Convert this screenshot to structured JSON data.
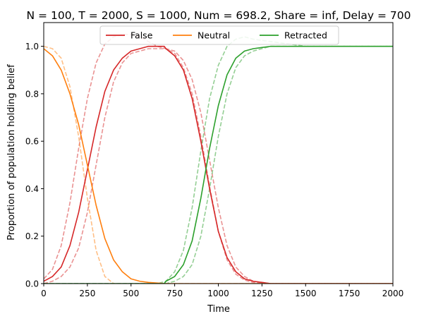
{
  "chart_data": {
    "type": "line",
    "title": "N = 100, T = 2000, S = 1000, Num = 698.2, Share = inf, Delay = 700",
    "xlabel": "Time",
    "ylabel": "Proportion of population holding belief",
    "xlim": [
      0,
      2000
    ],
    "ylim": [
      0,
      1.1
    ],
    "xticks": [
      "0",
      "250",
      "500",
      "750",
      "1000",
      "1250",
      "1500",
      "1750",
      "2000"
    ],
    "yticks": [
      "0.0",
      "0.2",
      "0.4",
      "0.6",
      "0.8",
      "1.0"
    ],
    "grid": false,
    "legend_placement": "upper center",
    "legend": [
      "False",
      "Neutral",
      "Retracted"
    ],
    "series": [
      {
        "name": "False",
        "color": "#d62728",
        "style": "solid",
        "x": [
          0,
          50,
          100,
          150,
          200,
          250,
          300,
          350,
          400,
          450,
          500,
          550,
          600,
          650,
          690,
          700,
          750,
          800,
          850,
          900,
          950,
          1000,
          1050,
          1100,
          1150,
          1200,
          1250,
          1300,
          1500,
          2000
        ],
        "y": [
          0.01,
          0.03,
          0.07,
          0.16,
          0.3,
          0.48,
          0.66,
          0.81,
          0.9,
          0.95,
          0.98,
          0.99,
          1.0,
          1.0,
          1.0,
          0.99,
          0.96,
          0.9,
          0.78,
          0.6,
          0.4,
          0.22,
          0.11,
          0.05,
          0.02,
          0.01,
          0.005,
          0.0,
          0.0,
          0.0
        ]
      },
      {
        "name": "Neutral",
        "color": "#ff7f0e",
        "style": "solid",
        "x": [
          0,
          50,
          100,
          150,
          200,
          250,
          300,
          350,
          400,
          450,
          500,
          550,
          600,
          700,
          800,
          2000
        ],
        "y": [
          0.99,
          0.96,
          0.9,
          0.8,
          0.67,
          0.5,
          0.33,
          0.19,
          0.1,
          0.05,
          0.02,
          0.01,
          0.005,
          0.0,
          0.0,
          0.0
        ]
      },
      {
        "name": "Retracted",
        "color": "#2ca02c",
        "style": "solid",
        "x": [
          0,
          690,
          700,
          750,
          800,
          850,
          900,
          950,
          1000,
          1050,
          1100,
          1150,
          1200,
          1250,
          1300,
          1400,
          1500,
          2000
        ],
        "y": [
          0.0,
          0.0,
          0.01,
          0.03,
          0.08,
          0.18,
          0.36,
          0.57,
          0.75,
          0.88,
          0.95,
          0.98,
          0.99,
          0.995,
          1.0,
          1.0,
          1.0,
          1.0
        ]
      },
      {
        "color": "#d62728",
        "style": "dashed",
        "x": [
          0,
          50,
          100,
          150,
          200,
          250,
          300,
          350,
          400,
          450,
          500,
          550,
          600,
          650,
          700,
          750,
          800,
          850,
          900,
          950,
          1000,
          1050,
          1100,
          1150,
          1200,
          1300,
          2000
        ],
        "y": [
          0.02,
          0.06,
          0.16,
          0.34,
          0.57,
          0.78,
          0.93,
          1.01,
          1.04,
          1.05,
          1.05,
          1.04,
          1.02,
          1.0,
          0.99,
          0.97,
          0.91,
          0.8,
          0.62,
          0.41,
          0.22,
          0.1,
          0.04,
          0.015,
          0.005,
          0.0,
          0.0
        ]
      },
      {
        "color": "#d62728",
        "style": "dashed",
        "x": [
          0,
          50,
          100,
          150,
          200,
          250,
          300,
          350,
          400,
          450,
          500,
          550,
          600,
          650,
          700,
          750,
          800,
          850,
          900,
          950,
          1000,
          1050,
          1100,
          1150,
          1200,
          1300,
          2000
        ],
        "y": [
          0.0,
          0.01,
          0.03,
          0.07,
          0.15,
          0.3,
          0.5,
          0.7,
          0.85,
          0.93,
          0.97,
          0.98,
          0.99,
          0.99,
          0.99,
          0.98,
          0.94,
          0.86,
          0.72,
          0.52,
          0.32,
          0.16,
          0.07,
          0.03,
          0.01,
          0.0,
          0.0
        ]
      },
      {
        "color": "#ff7f0e",
        "style": "dashed",
        "x": [
          0,
          50,
          100,
          150,
          200,
          250,
          300,
          350,
          400,
          500,
          2000
        ],
        "y": [
          1.0,
          0.99,
          0.95,
          0.83,
          0.62,
          0.36,
          0.14,
          0.03,
          0.0,
          0.0,
          0.0
        ]
      },
      {
        "color": "#2ca02c",
        "style": "dashed",
        "x": [
          0,
          650,
          700,
          750,
          800,
          850,
          900,
          950,
          1000,
          1050,
          1100,
          1150,
          1200,
          1300,
          1400,
          1500,
          2000
        ],
        "y": [
          0.0,
          0.0,
          0.01,
          0.05,
          0.14,
          0.32,
          0.56,
          0.78,
          0.92,
          1.0,
          1.03,
          1.04,
          1.03,
          1.02,
          1.01,
          1.0,
          1.0
        ]
      },
      {
        "color": "#2ca02c",
        "style": "dashed",
        "x": [
          0,
          700,
          750,
          800,
          850,
          900,
          950,
          1000,
          1050,
          1100,
          1150,
          1200,
          1250,
          1300,
          1400,
          1500,
          2000
        ],
        "y": [
          0.0,
          0.0,
          0.01,
          0.03,
          0.08,
          0.2,
          0.4,
          0.62,
          0.8,
          0.91,
          0.96,
          0.98,
          0.99,
          1.0,
          1.0,
          1.0,
          1.0
        ]
      }
    ]
  }
}
